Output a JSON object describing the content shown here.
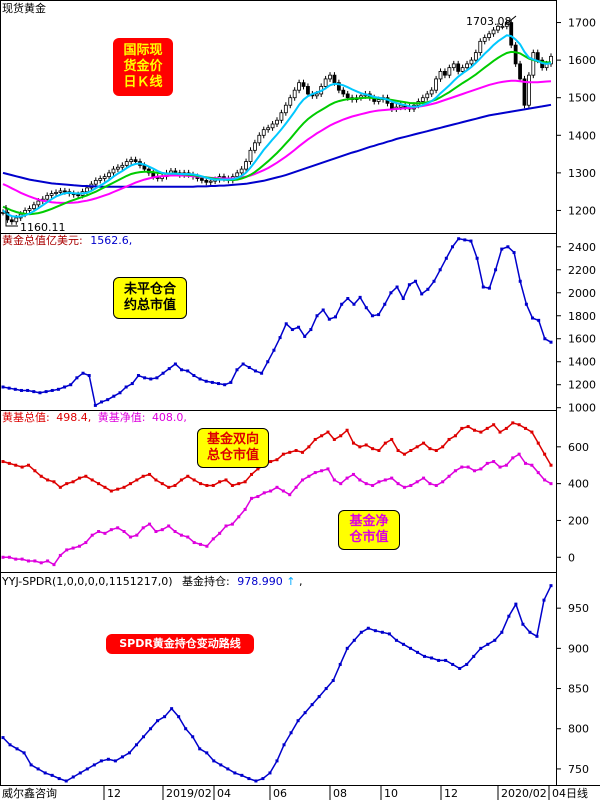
{
  "chart_data": [
    {
      "type": "candlestick",
      "title": "现货黄金",
      "ylim": [
        1140,
        1760
      ],
      "y_ticks": [
        "1200",
        "1300",
        "1400",
        "1500",
        "1600",
        "1700"
      ],
      "annotations": {
        "high": "1703.08",
        "low": "1160.11"
      },
      "callout": "国际现\n货金价\n日Ｋ线",
      "colors": {
        "candles": "#000000",
        "ma_fast": "#00c8ff",
        "ma_mid": "#00cc00",
        "ma_slow": "#ff00ff",
        "ma_long": "#0000cc",
        "callout_bg": "#ff0000",
        "callout_text": "#ffff00"
      },
      "close": [
        1195,
        1175,
        1170,
        1180,
        1190,
        1200,
        1205,
        1215,
        1225,
        1230,
        1240,
        1245,
        1248,
        1252,
        1250,
        1245,
        1242,
        1240,
        1250,
        1260,
        1270,
        1280,
        1285,
        1290,
        1300,
        1310,
        1315,
        1320,
        1330,
        1335,
        1330,
        1320,
        1310,
        1300,
        1290,
        1285,
        1290,
        1300,
        1305,
        1300,
        1295,
        1300,
        1295,
        1290,
        1285,
        1280,
        1275,
        1278,
        1282,
        1290,
        1285,
        1280,
        1290,
        1300,
        1310,
        1330,
        1360,
        1380,
        1400,
        1415,
        1420,
        1430,
        1440,
        1460,
        1480,
        1500,
        1520,
        1540,
        1530,
        1510,
        1505,
        1510,
        1530,
        1550,
        1560,
        1540,
        1520,
        1510,
        1500,
        1495,
        1500,
        1505,
        1510,
        1500,
        1490,
        1495,
        1500,
        1485,
        1470,
        1475,
        1480,
        1475,
        1470,
        1480,
        1490,
        1500,
        1510,
        1520,
        1550,
        1570,
        1560,
        1580,
        1590,
        1570,
        1580,
        1590,
        1600,
        1620,
        1650,
        1660,
        1670,
        1680,
        1690,
        1690,
        1700,
        1640,
        1590,
        1550,
        1480,
        1560,
        1620,
        1600,
        1580,
        1590,
        1610
      ],
      "ma_fast": [
        1200,
        1190,
        1185,
        1183,
        1184,
        1187,
        1192,
        1198,
        1206,
        1214,
        1222,
        1230,
        1237,
        1242,
        1246,
        1247,
        1246,
        1245,
        1245,
        1247,
        1252,
        1259,
        1266,
        1273,
        1281,
        1290,
        1298,
        1305,
        1313,
        1320,
        1324,
        1325,
        1322,
        1317,
        1311,
        1305,
        1300,
        1298,
        1298,
        1298,
        1297,
        1297,
        1297,
        1296,
        1294,
        1291,
        1287,
        1284,
        1282,
        1282,
        1282,
        1282,
        1283,
        1286,
        1292,
        1301,
        1314,
        1329,
        1345,
        1361,
        1375,
        1389,
        1402,
        1416,
        1431,
        1447,
        1463,
        1481,
        1495,
        1504,
        1510,
        1514,
        1518,
        1525,
        1533,
        1537,
        1536,
        1533,
        1528,
        1522,
        1517,
        1512,
        1509,
        1506,
        1502,
        1500,
        1498,
        1495,
        1490,
        1486,
        1483,
        1480,
        1477,
        1476,
        1477,
        1480,
        1485,
        1491,
        1500,
        1512,
        1522,
        1533,
        1545,
        1556,
        1565,
        1573,
        1582,
        1593,
        1605,
        1617,
        1628,
        1640,
        1650,
        1658,
        1666,
        1664,
        1655,
        1642,
        1622,
        1607,
        1602,
        1598,
        1592,
        1590,
        1592
      ],
      "ma_mid": [
        1210,
        1205,
        1200,
        1196,
        1193,
        1191,
        1190,
        1191,
        1193,
        1196,
        1200,
        1204,
        1209,
        1214,
        1219,
        1224,
        1228,
        1232,
        1236,
        1240,
        1245,
        1250,
        1256,
        1262,
        1268,
        1274,
        1280,
        1286,
        1292,
        1297,
        1300,
        1302,
        1303,
        1303,
        1302,
        1300,
        1299,
        1298,
        1298,
        1298,
        1297,
        1296,
        1295,
        1294,
        1292,
        1290,
        1288,
        1286,
        1284,
        1283,
        1282,
        1281,
        1281,
        1282,
        1285,
        1289,
        1295,
        1302,
        1311,
        1321,
        1331,
        1342,
        1353,
        1365,
        1378,
        1391,
        1405,
        1419,
        1432,
        1443,
        1452,
        1460,
        1467,
        1474,
        1481,
        1487,
        1491,
        1494,
        1496,
        1497,
        1498,
        1499,
        1500,
        1500,
        1499,
        1498,
        1497,
        1496,
        1494,
        1492,
        1490,
        1488,
        1486,
        1485,
        1485,
        1486,
        1488,
        1491,
        1495,
        1501,
        1508,
        1515,
        1523,
        1531,
        1539,
        1546,
        1554,
        1562,
        1571,
        1580,
        1589,
        1598,
        1606,
        1613,
        1619,
        1622,
        1621,
        1618,
        1611,
        1604,
        1600,
        1597,
        1595,
        1594,
        1594
      ],
      "ma_slow": [
        1270,
        1265,
        1259,
        1253,
        1247,
        1242,
        1237,
        1233,
        1229,
        1226,
        1224,
        1222,
        1221,
        1220,
        1220,
        1220,
        1221,
        1222,
        1224,
        1226,
        1229,
        1232,
        1236,
        1240,
        1244,
        1249,
        1254,
        1259,
        1264,
        1269,
        1274,
        1278,
        1282,
        1285,
        1288,
        1290,
        1291,
        1292,
        1293,
        1293,
        1293,
        1293,
        1292,
        1291,
        1290,
        1289,
        1288,
        1287,
        1286,
        1285,
        1285,
        1285,
        1285,
        1286,
        1288,
        1290,
        1293,
        1297,
        1302,
        1307,
        1313,
        1320,
        1327,
        1335,
        1343,
        1352,
        1361,
        1371,
        1380,
        1389,
        1397,
        1405,
        1412,
        1419,
        1426,
        1432,
        1437,
        1442,
        1446,
        1450,
        1453,
        1456,
        1459,
        1462,
        1464,
        1466,
        1467,
        1468,
        1469,
        1470,
        1471,
        1472,
        1473,
        1474,
        1476,
        1478,
        1480,
        1483,
        1486,
        1490,
        1494,
        1498,
        1502,
        1506,
        1510,
        1514,
        1518,
        1522,
        1526,
        1530,
        1534,
        1537,
        1540,
        1542,
        1544,
        1545,
        1545,
        1544,
        1542,
        1541,
        1541,
        1541,
        1542,
        1543,
        1544
      ],
      "ma_long": [
        1300,
        1297,
        1294,
        1291,
        1288,
        1285,
        1282,
        1280,
        1278,
        1276,
        1274,
        1272,
        1271,
        1270,
        1269,
        1268,
        1267,
        1266,
        1265,
        1265,
        1264,
        1264,
        1263,
        1263,
        1263,
        1263,
        1263,
        1263,
        1263,
        1263,
        1263,
        1263,
        1263,
        1263,
        1263,
        1263,
        1263,
        1263,
        1263,
        1263,
        1263,
        1263,
        1263,
        1263,
        1264,
        1264,
        1264,
        1265,
        1265,
        1266,
        1266,
        1267,
        1268,
        1269,
        1270,
        1271,
        1273,
        1275,
        1277,
        1279,
        1282,
        1285,
        1288,
        1291,
        1294,
        1298,
        1302,
        1306,
        1310,
        1314,
        1318,
        1322,
        1326,
        1330,
        1334,
        1338,
        1342,
        1346,
        1350,
        1354,
        1357,
        1361,
        1365,
        1369,
        1372,
        1376,
        1379,
        1383,
        1386,
        1390,
        1393,
        1396,
        1399,
        1402,
        1405,
        1408,
        1411,
        1414,
        1417,
        1420,
        1423,
        1426,
        1429,
        1432,
        1435,
        1438,
        1441,
        1444,
        1447,
        1450,
        1453,
        1455,
        1457,
        1459,
        1461,
        1463,
        1465,
        1467,
        1469,
        1471,
        1473,
        1475,
        1477,
        1479,
        1481
      ]
    },
    {
      "type": "line",
      "header": "黄金总值亿美元: 1562.6,",
      "header_label": "黄金总值亿美元:",
      "header_value": "1562.6,",
      "ylim": [
        980,
        2520
      ],
      "y_ticks": [
        "1000",
        "1200",
        "1400",
        "1600",
        "1800",
        "2000",
        "2200",
        "2400"
      ],
      "callout": "未平仓合\n约总市值",
      "colors": {
        "line": "#0000cc",
        "callout_bg": "#ffff00",
        "callout_text": "#000000"
      },
      "values": [
        1180,
        1170,
        1160,
        1150,
        1150,
        1140,
        1130,
        1140,
        1150,
        1160,
        1180,
        1200,
        1260,
        1300,
        1280,
        1020,
        1050,
        1070,
        1100,
        1130,
        1180,
        1210,
        1280,
        1260,
        1250,
        1260,
        1300,
        1340,
        1380,
        1330,
        1320,
        1280,
        1250,
        1230,
        1220,
        1210,
        1200,
        1220,
        1330,
        1380,
        1350,
        1320,
        1300,
        1400,
        1500,
        1610,
        1730,
        1680,
        1700,
        1620,
        1680,
        1800,
        1850,
        1770,
        1790,
        1900,
        1950,
        1900,
        1960,
        1870,
        1800,
        1810,
        1900,
        2000,
        2050,
        1950,
        2070,
        2100,
        1990,
        2030,
        2100,
        2200,
        2300,
        2400,
        2470,
        2460,
        2450,
        2300,
        2050,
        2040,
        2200,
        2380,
        2400,
        2350,
        2100,
        1900,
        1780,
        1760,
        1600,
        1570
      ]
    },
    {
      "type": "line",
      "header_label_1": "黄基总值:",
      "header_value_1": "498.4,",
      "header_label_2": "黄基净值:",
      "header_value_2": "408.0,",
      "ylim": [
        -80,
        800
      ],
      "y_ticks": [
        "0",
        "200",
        "400",
        "600"
      ],
      "callout_1": "基金双向\n总仓市值",
      "callout_2": "基金净\n仓市值",
      "series": [
        {
          "name": "黄基总值",
          "color": "#dd0000",
          "values": [
            520,
            510,
            500,
            490,
            500,
            470,
            440,
            420,
            410,
            380,
            400,
            410,
            430,
            440,
            420,
            400,
            380,
            360,
            370,
            380,
            400,
            420,
            440,
            450,
            420,
            400,
            380,
            390,
            420,
            440,
            420,
            400,
            390,
            390,
            410,
            420,
            390,
            400,
            410,
            450,
            480,
            500,
            520,
            530,
            560,
            570,
            580,
            570,
            600,
            640,
            660,
            680,
            640,
            660,
            690,
            620,
            600,
            610,
            590,
            580,
            620,
            640,
            580,
            560,
            580,
            600,
            620,
            590,
            580,
            600,
            640,
            660,
            700,
            710,
            690,
            680,
            700,
            720,
            680,
            700,
            730,
            720,
            700,
            680,
            620,
            560,
            500
          ]
        },
        {
          "name": "黄基净值",
          "color": "#dd00dd",
          "values": [
            0,
            0,
            -10,
            -10,
            -20,
            -20,
            -30,
            -20,
            -40,
            10,
            40,
            50,
            60,
            80,
            120,
            140,
            130,
            150,
            160,
            140,
            110,
            120,
            160,
            180,
            140,
            150,
            170,
            140,
            120,
            110,
            80,
            70,
            60,
            100,
            130,
            170,
            180,
            220,
            260,
            320,
            330,
            350,
            360,
            380,
            360,
            340,
            380,
            420,
            440,
            460,
            470,
            480,
            420,
            400,
            430,
            450,
            420,
            400,
            390,
            410,
            420,
            430,
            400,
            380,
            390,
            410,
            430,
            400,
            390,
            410,
            440,
            470,
            490,
            490,
            470,
            480,
            510,
            520,
            490,
            500,
            540,
            560,
            510,
            500,
            460,
            420,
            400
          ]
        }
      ],
      "colors": {
        "callout_bg": "#ffff00",
        "callout_text": "#ff0000",
        "callout2_bg": "#ffff00",
        "callout2_text": "#dd00dd"
      }
    },
    {
      "type": "line",
      "header_label": "YYJ-SPDR(1,0,0,0,0,1151217,0)",
      "header_value_label": "基金持仓:",
      "header_value": "978.990",
      "header_arrow": "↑",
      "header_comma": ",",
      "ylim": [
        730,
        995
      ],
      "y_ticks": [
        "750",
        "800",
        "850",
        "900",
        "950"
      ],
      "callout": "SPDR黄金持仓变动路线",
      "colors": {
        "line": "#0000cc",
        "callout_bg": "#ff0000",
        "callout_text": "#ffffff"
      },
      "values": [
        789,
        780,
        775,
        770,
        755,
        750,
        745,
        742,
        738,
        735,
        740,
        745,
        750,
        755,
        760,
        762,
        760,
        765,
        770,
        780,
        790,
        800,
        810,
        815,
        825,
        815,
        800,
        790,
        775,
        770,
        760,
        755,
        750,
        745,
        742,
        738,
        735,
        738,
        745,
        760,
        780,
        795,
        810,
        820,
        830,
        840,
        850,
        860,
        880,
        900,
        910,
        920,
        925,
        922,
        920,
        918,
        910,
        905,
        900,
        895,
        890,
        888,
        885,
        885,
        880,
        875,
        880,
        890,
        900,
        905,
        910,
        920,
        940,
        955,
        930,
        920,
        915,
        960,
        978
      ]
    }
  ],
  "x_axis": {
    "labels": [
      "12",
      "2019/02",
      "04",
      "06",
      "08",
      "10",
      "12",
      "2020/02",
      "04"
    ],
    "corner_label": "威尔鑫咨询",
    "end_label": "日线"
  }
}
